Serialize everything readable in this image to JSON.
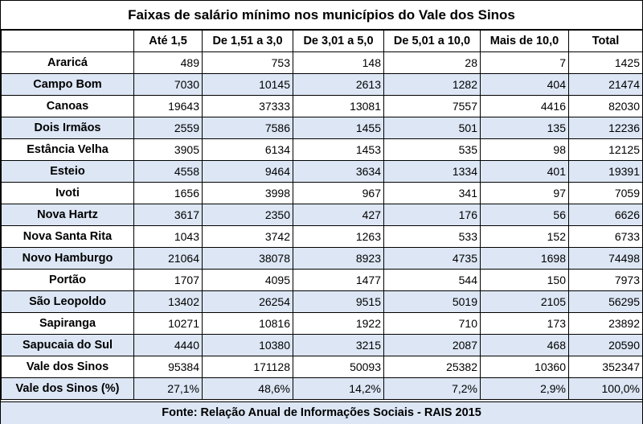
{
  "title": "Faixas de salário mínimo nos municípios do Vale dos Sinos",
  "columns": [
    "",
    "Até 1,5",
    "De 1,51 a 3,0",
    "De 3,01 a 5,0",
    "De 5,01 a 10,0",
    "Mais de 10,0",
    "Total"
  ],
  "rows": [
    {
      "name": "Araricá",
      "values": [
        "489",
        "753",
        "148",
        "28",
        "7",
        "1425"
      ]
    },
    {
      "name": "Campo Bom",
      "values": [
        "7030",
        "10145",
        "2613",
        "1282",
        "404",
        "21474"
      ]
    },
    {
      "name": "Canoas",
      "values": [
        "19643",
        "37333",
        "13081",
        "7557",
        "4416",
        "82030"
      ]
    },
    {
      "name": "Dois Irmãos",
      "values": [
        "2559",
        "7586",
        "1455",
        "501",
        "135",
        "12236"
      ]
    },
    {
      "name": "Estância Velha",
      "values": [
        "3905",
        "6134",
        "1453",
        "535",
        "98",
        "12125"
      ]
    },
    {
      "name": "Esteio",
      "values": [
        "4558",
        "9464",
        "3634",
        "1334",
        "401",
        "19391"
      ]
    },
    {
      "name": "Ivoti",
      "values": [
        "1656",
        "3998",
        "967",
        "341",
        "97",
        "7059"
      ]
    },
    {
      "name": "Nova Hartz",
      "values": [
        "3617",
        "2350",
        "427",
        "176",
        "56",
        "6626"
      ]
    },
    {
      "name": "Nova Santa Rita",
      "values": [
        "1043",
        "3742",
        "1263",
        "533",
        "152",
        "6733"
      ]
    },
    {
      "name": "Novo Hamburgo",
      "values": [
        "21064",
        "38078",
        "8923",
        "4735",
        "1698",
        "74498"
      ]
    },
    {
      "name": "Portão",
      "values": [
        "1707",
        "4095",
        "1477",
        "544",
        "150",
        "7973"
      ]
    },
    {
      "name": "São Leopoldo",
      "values": [
        "13402",
        "26254",
        "9515",
        "5019",
        "2105",
        "56295"
      ]
    },
    {
      "name": "Sapiranga",
      "values": [
        "10271",
        "10816",
        "1922",
        "710",
        "173",
        "23892"
      ]
    },
    {
      "name": "Sapucaia do Sul",
      "values": [
        "4440",
        "10380",
        "3215",
        "2087",
        "468",
        "20590"
      ]
    },
    {
      "name": "Vale dos Sinos",
      "values": [
        "95384",
        "171128",
        "50093",
        "25382",
        "10360",
        "352347"
      ]
    },
    {
      "name": "Vale dos Sinos (%)",
      "values": [
        "27,1%",
        "48,6%",
        "14,2%",
        "7,2%",
        "2,9%",
        "100,0%"
      ]
    }
  ],
  "footer": "Fonte: Relação Anual de Informações Sociais - RAIS 2015",
  "colors": {
    "band": "#dce6f4",
    "background": "#ffffff",
    "border": "#000000"
  }
}
